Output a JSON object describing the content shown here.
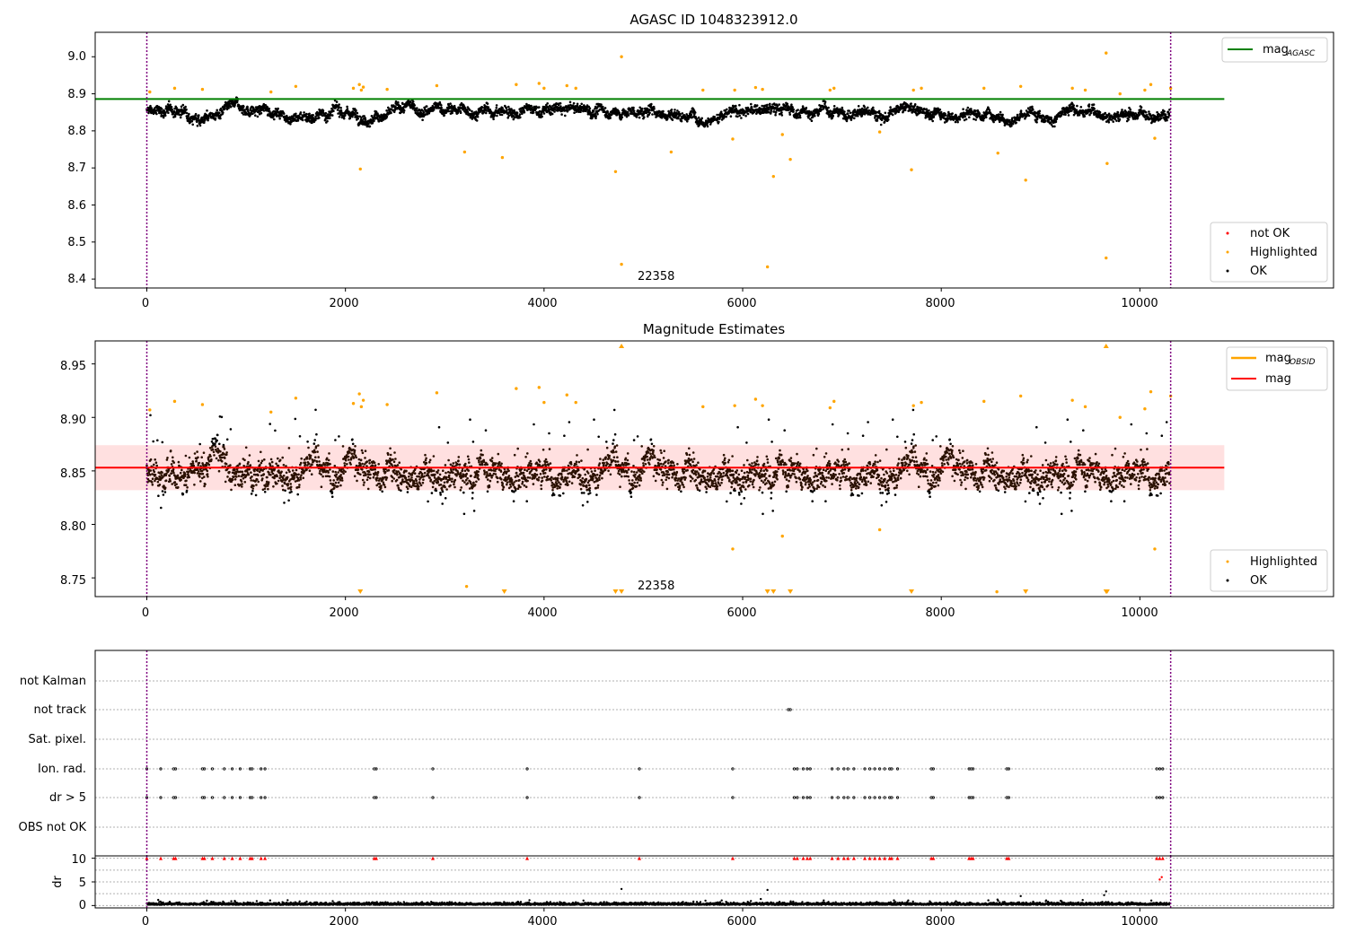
{
  "chart_data": [
    {
      "id": "p1",
      "type": "scatter",
      "title": "AGASC ID 1048323912.0",
      "xlabel": "",
      "ylabel": "",
      "xlim": [
        -520,
        11950
      ],
      "ylim": [
        8.376,
        9.066
      ],
      "x_ticks": [
        0,
        2000,
        4000,
        6000,
        8000,
        10000
      ],
      "y_ticks": [
        8.4,
        8.5,
        8.6,
        8.7,
        8.8,
        8.9,
        9.0
      ],
      "y_tick_labels": [
        "8.4",
        "8.5",
        "8.6",
        "8.7",
        "8.8",
        "8.9",
        "9.0"
      ],
      "vlines": [
        0,
        10310
      ],
      "hline": {
        "y": 8.886,
        "x": [
          -520,
          10850
        ],
        "color": "#008000"
      },
      "annotation": {
        "text": "22358",
        "x": 5000,
        "y": 8.405
      },
      "ok_band": {
        "x": [
          0,
          10300
        ],
        "y_lo": 8.82,
        "y_hi": 8.88,
        "color": "#000000"
      },
      "highlighted": {
        "color": "#ffa500",
        "points": [
          [
            30,
            8.905
          ],
          [
            280,
            8.915
          ],
          [
            560,
            8.912
          ],
          [
            1250,
            8.905
          ],
          [
            1500,
            8.92
          ],
          [
            2080,
            8.915
          ],
          [
            2140,
            8.925
          ],
          [
            2160,
            8.91
          ],
          [
            2180,
            8.918
          ],
          [
            2150,
            8.697
          ],
          [
            2420,
            8.912
          ],
          [
            2920,
            8.922
          ],
          [
            3200,
            8.743
          ],
          [
            3580,
            8.728
          ],
          [
            3720,
            8.925
          ],
          [
            3950,
            8.928
          ],
          [
            4000,
            8.915
          ],
          [
            4230,
            8.922
          ],
          [
            4320,
            8.915
          ],
          [
            4720,
            8.69
          ],
          [
            4780,
            9.0
          ],
          [
            4780,
            8.44
          ],
          [
            5280,
            8.743
          ],
          [
            5600,
            8.91
          ],
          [
            5900,
            8.778
          ],
          [
            5920,
            8.91
          ],
          [
            6130,
            8.917
          ],
          [
            6200,
            8.912
          ],
          [
            6250,
            8.433
          ],
          [
            6310,
            8.677
          ],
          [
            6400,
            8.79
          ],
          [
            6480,
            8.723
          ],
          [
            6880,
            8.91
          ],
          [
            6920,
            8.915
          ],
          [
            7380,
            8.797
          ],
          [
            7700,
            8.695
          ],
          [
            7720,
            8.91
          ],
          [
            7800,
            8.915
          ],
          [
            8430,
            8.915
          ],
          [
            8570,
            8.74
          ],
          [
            8800,
            8.92
          ],
          [
            8850,
            8.667
          ],
          [
            9320,
            8.915
          ],
          [
            9450,
            8.91
          ],
          [
            9660,
            9.01
          ],
          [
            9670,
            8.712
          ],
          [
            9660,
            8.457
          ],
          [
            9800,
            8.9
          ],
          [
            10050,
            8.91
          ],
          [
            10110,
            8.925
          ],
          [
            10150,
            8.78
          ],
          [
            10310,
            8.915
          ]
        ]
      },
      "legend": {
        "placement": "lower-right",
        "entries": [
          "not OK",
          "Highlighted",
          "OK"
        ],
        "colors": [
          "#ff0000",
          "#ffa500",
          "#000000"
        ]
      },
      "legend_top": {
        "placement": "upper-right",
        "entry": "mag",
        "subscript": "AGASC",
        "color": "#008000"
      }
    },
    {
      "id": "p2",
      "type": "scatter",
      "title": "Magnitude Estimates",
      "xlabel": "",
      "ylabel": "",
      "xlim": [
        -520,
        11950
      ],
      "ylim": [
        8.7325,
        8.9715
      ],
      "x_ticks": [
        0,
        2000,
        4000,
        6000,
        8000,
        10000
      ],
      "y_ticks": [
        8.75,
        8.8,
        8.85,
        8.9,
        8.95
      ],
      "y_tick_labels": [
        "8.75",
        "8.80",
        "8.85",
        "8.90",
        "8.95"
      ],
      "vlines": [
        0,
        10310
      ],
      "hline": {
        "y": 8.853,
        "x": [
          -520,
          10850
        ],
        "color": "#ff0000"
      },
      "band": {
        "y_lo": 8.832,
        "y_hi": 8.874,
        "x": [
          -520,
          10850
        ],
        "color": "#ffe0e0"
      },
      "annotation": {
        "text": "22358",
        "x": 5000,
        "y": 8.743
      },
      "highlighted": {
        "color": "#ffa500",
        "points": [
          [
            30,
            8.907
          ],
          [
            280,
            8.915
          ],
          [
            560,
            8.912
          ],
          [
            1250,
            8.905
          ],
          [
            1500,
            8.918
          ],
          [
            2080,
            8.913
          ],
          [
            2140,
            8.922
          ],
          [
            2160,
            8.91
          ],
          [
            2180,
            8.916
          ],
          [
            2420,
            8.912
          ],
          [
            2920,
            8.923
          ],
          [
            3220,
            8.742
          ],
          [
            3720,
            8.927
          ],
          [
            3950,
            8.928
          ],
          [
            4000,
            8.914
          ],
          [
            4230,
            8.921
          ],
          [
            4320,
            8.914
          ],
          [
            5600,
            8.91
          ],
          [
            5900,
            8.777
          ],
          [
            5920,
            8.911
          ],
          [
            6130,
            8.917
          ],
          [
            6200,
            8.911
          ],
          [
            6400,
            8.789
          ],
          [
            6880,
            8.909
          ],
          [
            6920,
            8.915
          ],
          [
            7380,
            8.795
          ],
          [
            7720,
            8.911
          ],
          [
            7800,
            8.914
          ],
          [
            8430,
            8.915
          ],
          [
            8560,
            8.737
          ],
          [
            8800,
            8.92
          ],
          [
            9320,
            8.916
          ],
          [
            9450,
            8.91
          ],
          [
            9800,
            8.9
          ],
          [
            10050,
            8.908
          ],
          [
            10110,
            8.924
          ],
          [
            10150,
            8.777
          ],
          [
            10310,
            8.92
          ]
        ],
        "up_arrows": [
          4780,
          9660
        ],
        "down_arrows": [
          2150,
          3600,
          4720,
          4780,
          6250,
          6310,
          6480,
          7700,
          8850,
          9660,
          9670
        ]
      },
      "legend": {
        "placement": "lower-right",
        "entries": [
          "Highlighted",
          "OK"
        ],
        "colors": [
          "#ffa500",
          "#000000"
        ]
      },
      "legend_top": {
        "placement": "upper-right",
        "entries": [
          "mag",
          "mag"
        ],
        "subscripts": [
          "OBSID",
          ""
        ],
        "colors": [
          "#ffa500",
          "#ff0000"
        ]
      }
    },
    {
      "id": "p3",
      "type": "scatter",
      "title": "",
      "xlabel": "",
      "ylabel": "",
      "xlim": [
        -520,
        11950
      ],
      "categories": [
        "OBS not OK",
        "dr > 5",
        "Ion. rad.",
        "Sat. pixel.",
        "not track",
        "not Kalman"
      ],
      "vlines": [
        0,
        10310
      ],
      "flag_times": [
        0,
        140,
        270,
        290,
        560,
        580,
        660,
        780,
        860,
        940,
        1040,
        1060,
        1150,
        1190,
        2290,
        2310,
        2880,
        3830,
        4960,
        5900,
        6520,
        6550,
        6610,
        6650,
        6680,
        6900,
        6960,
        7020,
        7060,
        7120,
        7230,
        7280,
        7330,
        7380,
        7430,
        7480,
        7500,
        7560,
        7900,
        7920,
        8280,
        8300,
        8320,
        8660,
        8680,
        10170,
        10200,
        10230
      ],
      "not_track_times": [
        6460,
        6480
      ]
    },
    {
      "id": "p4",
      "type": "scatter",
      "title": "",
      "xlabel": "",
      "ylabel": "dr",
      "xlim": [
        -520,
        11950
      ],
      "ylim": [
        -0.5,
        10.5
      ],
      "y_ticks": [
        0,
        5,
        10
      ],
      "y_tick_labels": [
        "0",
        "5",
        "10"
      ],
      "x_ticks": [
        0,
        2000,
        4000,
        6000,
        8000,
        10000
      ],
      "vlines": [
        0,
        10310
      ],
      "clipped_color": "#ff0000",
      "outliers": [
        [
          4780,
          3.5
        ],
        [
          6250,
          3.3
        ],
        [
          9660,
          3.0
        ],
        [
          9640,
          2.2
        ],
        [
          8800,
          2.0
        ],
        [
          10200,
          5.5
        ],
        [
          10220,
          6.0
        ]
      ]
    }
  ],
  "x_tick_labels": [
    "0",
    "2000",
    "4000",
    "6000",
    "8000",
    "10000"
  ]
}
